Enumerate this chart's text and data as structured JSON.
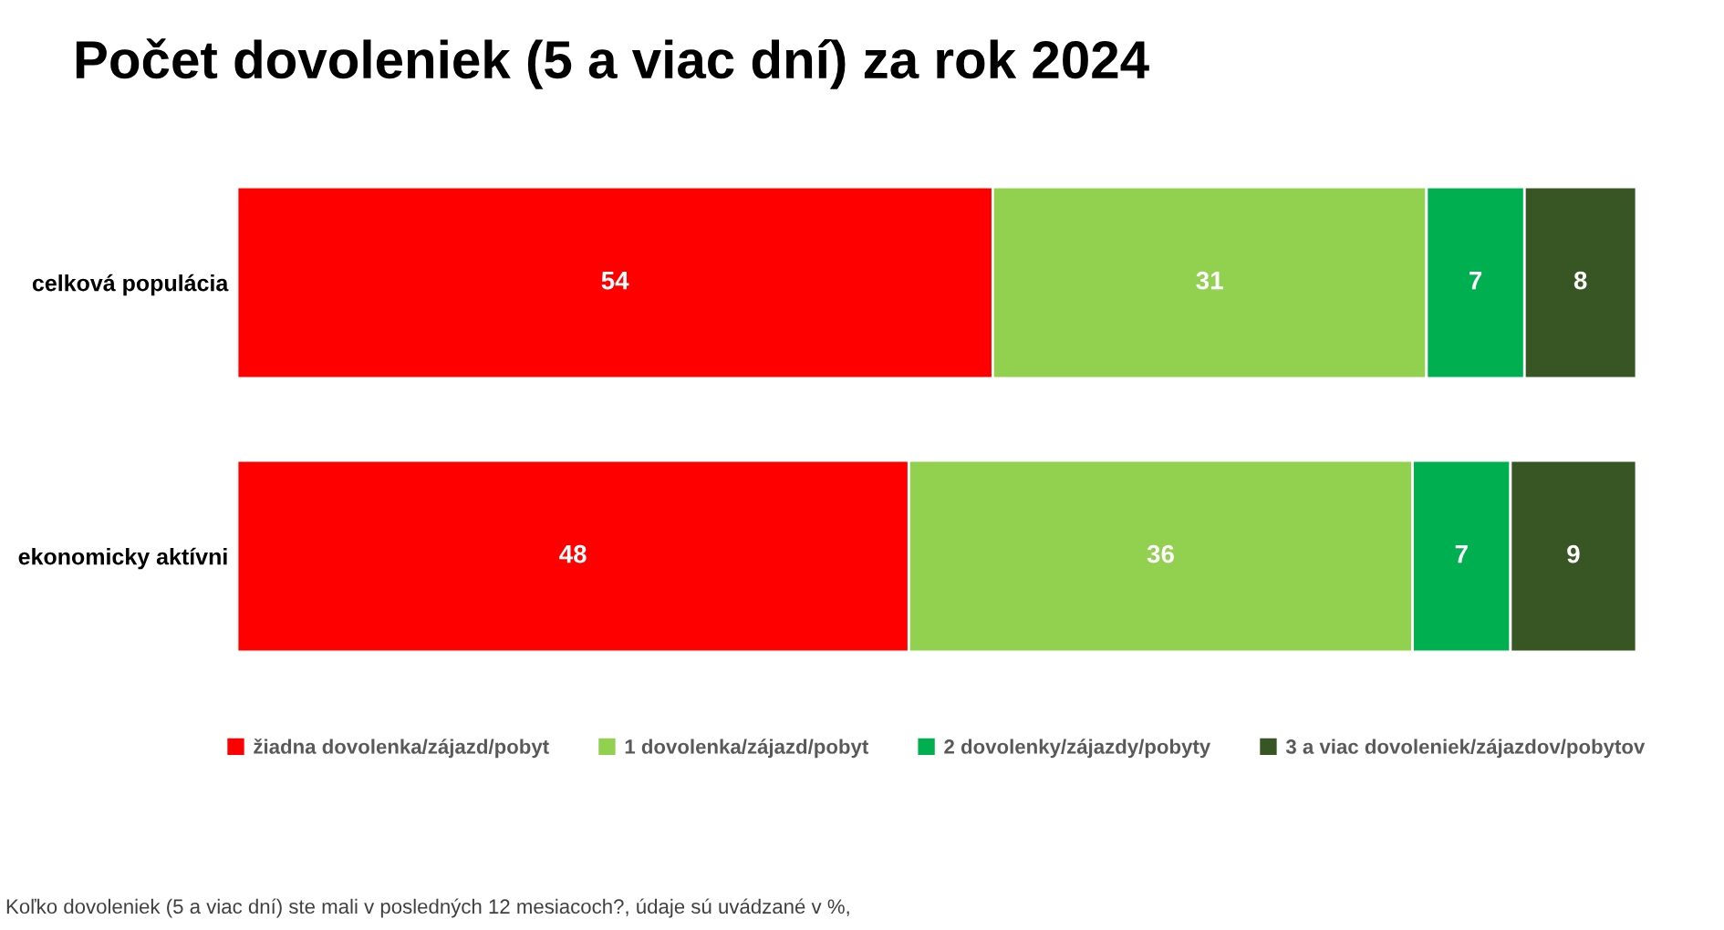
{
  "chart_data": {
    "type": "bar",
    "orientation": "horizontal",
    "stacked": true,
    "title": "Počet dovoleniek (5 a viac dní) za rok 2024",
    "categories": [
      "celková populácia",
      "ekonomicky aktívni"
    ],
    "series": [
      {
        "name": "žiadna dovolenka/zájazd/pobyt",
        "color": "#ff0000",
        "values": [
          54,
          48
        ]
      },
      {
        "name": "1 dovolenka/zájazd/pobyt",
        "color": "#92d050",
        "values": [
          31,
          36
        ]
      },
      {
        "name": "2 dovolenky/zájazdy/pobyty",
        "color": "#00b050",
        "values": [
          7,
          7
        ]
      },
      {
        "name": "3 a viac dovoleniek/zájazdov/pobytov",
        "color": "#375623",
        "values": [
          8,
          9
        ]
      }
    ],
    "data_labels": true,
    "legend": "bottom",
    "grid": false,
    "tick_labels": "y",
    "annotations": [
      "Koľko dovoleniek (5 a viac dní) ste mali v posledných 12 mesiacoch?, údaje sú uvádzané v %,"
    ]
  }
}
